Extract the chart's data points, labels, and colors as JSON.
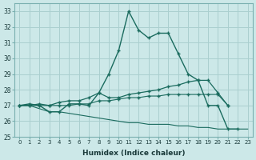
{
  "x": [
    0,
    1,
    2,
    3,
    4,
    5,
    6,
    7,
    8,
    9,
    10,
    11,
    12,
    13,
    14,
    15,
    16,
    17,
    18,
    19,
    20,
    21,
    22,
    23
  ],
  "y_peak": [
    27.0,
    27.1,
    27.0,
    26.6,
    26.6,
    27.1,
    27.1,
    27.0,
    27.8,
    29.0,
    30.5,
    33.0,
    31.8,
    31.3,
    31.6,
    31.6,
    30.3,
    29.0,
    28.6,
    27.0,
    27.0,
    25.5,
    25.5,
    null
  ],
  "y_rise": [
    27.0,
    27.0,
    27.1,
    27.0,
    27.2,
    27.3,
    27.3,
    27.5,
    27.8,
    27.5,
    27.5,
    27.7,
    27.8,
    27.9,
    28.0,
    28.2,
    28.3,
    28.5,
    28.6,
    28.6,
    27.8,
    27.0,
    null,
    null
  ],
  "y_flat": [
    27.0,
    27.0,
    27.0,
    27.0,
    27.0,
    27.0,
    27.1,
    27.1,
    27.3,
    27.3,
    27.4,
    27.5,
    27.5,
    27.6,
    27.6,
    27.7,
    27.7,
    27.7,
    27.7,
    27.7,
    27.7,
    27.0,
    null,
    null
  ],
  "y_fall": [
    27.0,
    27.0,
    26.8,
    26.6,
    26.6,
    26.5,
    26.4,
    26.3,
    26.2,
    26.1,
    26.0,
    25.9,
    25.9,
    25.8,
    25.8,
    25.8,
    25.7,
    25.7,
    25.6,
    25.6,
    25.5,
    25.5,
    25.5,
    25.5
  ],
  "color": "#1a6b5e",
  "bg_color": "#cce8e8",
  "grid_color": "#aacfcf",
  "xlabel": "Humidex (Indice chaleur)",
  "ylim_min": 25,
  "ylim_max": 33.5,
  "xlim_min": -0.5,
  "xlim_max": 23.5,
  "yticks": [
    25,
    26,
    27,
    28,
    29,
    30,
    31,
    32,
    33
  ],
  "xticks": [
    0,
    1,
    2,
    3,
    4,
    5,
    6,
    7,
    8,
    9,
    10,
    11,
    12,
    13,
    14,
    15,
    16,
    17,
    18,
    19,
    20,
    21,
    22,
    23
  ]
}
